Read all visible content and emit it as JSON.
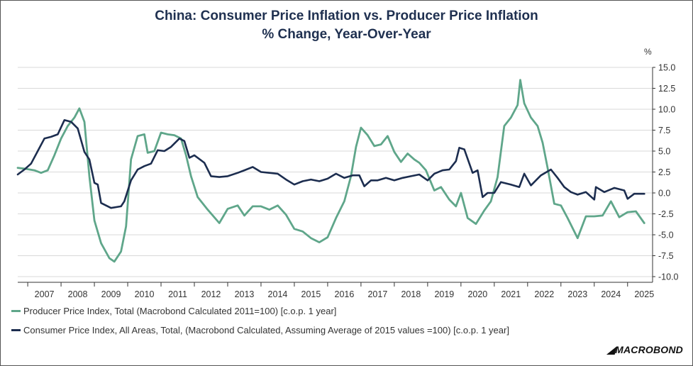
{
  "title_line1": "China: Consumer Price Inflation vs. Producer Price Inflation",
  "title_line2": "% Change, Year-Over-Year",
  "brand": "MACROBOND",
  "colors": {
    "ppi": "#5fa68a",
    "cpi": "#1c2d4f",
    "grid": "#d9d9d9",
    "axis": "#333333"
  },
  "chart_data": {
    "type": "line",
    "unit": "%",
    "ylim": [
      -10,
      15
    ],
    "yticks": [
      "15.0",
      "12.5",
      "10.0",
      "7.5",
      "5.0",
      "2.5",
      "0.0",
      "-2.5",
      "-5.0",
      "-7.5",
      "-10.0"
    ],
    "xlim": [
      2006.7,
      2025.75
    ],
    "xticks": [
      "2007",
      "2008",
      "2009",
      "2010",
      "2011",
      "2012",
      "2013",
      "2014",
      "2015",
      "2016",
      "2017",
      "2018",
      "2019",
      "2020",
      "2021",
      "2022",
      "2023",
      "2024",
      "2025"
    ],
    "grid": true,
    "legend_position": "bottom",
    "series": [
      {
        "name": "Producer Price Index, Total (Macrobond Calculated 2011=100) [c.o.p. 1 year]",
        "key": "ppi",
        "x": [
          2006.7,
          2006.9,
          2007.2,
          2007.4,
          2007.6,
          2007.8,
          2008.0,
          2008.2,
          2008.4,
          2008.55,
          2008.7,
          2008.85,
          2009.0,
          2009.2,
          2009.45,
          2009.6,
          2009.8,
          2009.95,
          2010.1,
          2010.3,
          2010.5,
          2010.6,
          2010.8,
          2011.0,
          2011.2,
          2011.4,
          2011.6,
          2011.75,
          2011.9,
          2012.1,
          2012.4,
          2012.75,
          2013.0,
          2013.3,
          2013.5,
          2013.75,
          2014.0,
          2014.25,
          2014.5,
          2014.75,
          2015.0,
          2015.25,
          2015.5,
          2015.75,
          2016.0,
          2016.25,
          2016.5,
          2016.7,
          2016.85,
          2017.0,
          2017.2,
          2017.4,
          2017.6,
          2017.8,
          2018.0,
          2018.2,
          2018.4,
          2018.6,
          2018.75,
          2018.95,
          2019.2,
          2019.4,
          2019.65,
          2019.85,
          2020.0,
          2020.2,
          2020.45,
          2020.7,
          2020.9,
          2021.1,
          2021.3,
          2021.5,
          2021.7,
          2021.78,
          2021.9,
          2022.1,
          2022.3,
          2022.45,
          2022.6,
          2022.8,
          2023.0,
          2023.2,
          2023.5,
          2023.75,
          2024.0,
          2024.25,
          2024.5,
          2024.75,
          2025.0,
          2025.25,
          2025.5
        ],
        "y": [
          3.0,
          2.9,
          2.7,
          2.4,
          2.7,
          4.5,
          6.5,
          8.0,
          9.0,
          10.1,
          8.5,
          2.0,
          -3.3,
          -6.0,
          -7.8,
          -8.2,
          -7.0,
          -4.0,
          4.0,
          6.8,
          7.0,
          4.8,
          5.0,
          7.2,
          7.0,
          6.9,
          6.5,
          4.5,
          2.0,
          -0.5,
          -2.0,
          -3.6,
          -1.9,
          -1.5,
          -2.7,
          -1.6,
          -1.6,
          -2.0,
          -1.5,
          -2.6,
          -4.3,
          -4.6,
          -5.4,
          -5.9,
          -5.3,
          -3.0,
          -1.0,
          2.0,
          5.5,
          7.8,
          6.9,
          5.6,
          5.8,
          6.8,
          4.9,
          3.7,
          4.7,
          4.0,
          3.6,
          2.7,
          0.3,
          0.7,
          -0.8,
          -1.6,
          0.0,
          -3.0,
          -3.7,
          -2.1,
          -1.0,
          1.9,
          8.0,
          9.0,
          10.5,
          13.5,
          10.7,
          9.0,
          8.0,
          6.0,
          3.0,
          -1.3,
          -1.5,
          -3.0,
          -5.4,
          -2.8,
          -2.8,
          -2.7,
          -1.0,
          -2.9,
          -2.3,
          -2.2,
          -3.6
        ]
      },
      {
        "name": "Consumer Price Index, All Areas, Total, (Macrobond Calculated, Assuming Average of 2015 values =100)     [c.o.p. 1 year]",
        "key": "cpi",
        "x": [
          2006.7,
          2006.9,
          2007.1,
          2007.3,
          2007.5,
          2007.7,
          2007.9,
          2008.1,
          2008.3,
          2008.5,
          2008.7,
          2008.85,
          2009.0,
          2009.1,
          2009.2,
          2009.5,
          2009.8,
          2009.9,
          2010.1,
          2010.3,
          2010.5,
          2010.7,
          2010.9,
          2011.1,
          2011.3,
          2011.55,
          2011.7,
          2011.85,
          2012.0,
          2012.3,
          2012.5,
          2012.75,
          2013.0,
          2013.3,
          2013.5,
          2013.75,
          2014.0,
          2014.25,
          2014.5,
          2014.75,
          2015.0,
          2015.25,
          2015.5,
          2015.75,
          2016.0,
          2016.25,
          2016.5,
          2016.75,
          2016.95,
          2017.1,
          2017.3,
          2017.5,
          2017.75,
          2018.0,
          2018.25,
          2018.5,
          2018.75,
          2019.0,
          2019.2,
          2019.45,
          2019.65,
          2019.85,
          2019.95,
          2020.1,
          2020.35,
          2020.5,
          2020.65,
          2020.8,
          2021.0,
          2021.2,
          2021.5,
          2021.75,
          2021.9,
          2022.1,
          2022.4,
          2022.7,
          2022.9,
          2023.1,
          2023.3,
          2023.5,
          2023.75,
          2024.0,
          2024.05,
          2024.3,
          2024.6,
          2024.9,
          2025.0,
          2025.2,
          2025.5
        ],
        "y": [
          2.2,
          2.8,
          3.5,
          5.0,
          6.5,
          6.7,
          7.0,
          8.7,
          8.5,
          7.7,
          4.9,
          4.0,
          1.2,
          1.0,
          -1.2,
          -1.8,
          -1.6,
          -1.0,
          1.5,
          2.8,
          3.2,
          3.5,
          5.1,
          5.0,
          5.5,
          6.5,
          6.2,
          4.2,
          4.5,
          3.6,
          2.0,
          1.9,
          2.0,
          2.4,
          2.7,
          3.1,
          2.5,
          2.4,
          2.3,
          1.6,
          1.0,
          1.4,
          1.6,
          1.4,
          1.7,
          2.3,
          1.8,
          2.1,
          2.1,
          0.8,
          1.5,
          1.5,
          1.8,
          1.5,
          1.8,
          2.0,
          2.2,
          1.5,
          2.3,
          2.7,
          2.8,
          3.8,
          5.4,
          5.2,
          2.4,
          2.7,
          -0.5,
          0.0,
          0.0,
          1.3,
          1.0,
          0.7,
          2.3,
          0.9,
          2.1,
          2.8,
          1.8,
          0.7,
          0.1,
          -0.2,
          0.1,
          -0.8,
          0.7,
          0.1,
          0.6,
          0.3,
          -0.7,
          -0.1,
          -0.1
        ]
      }
    ]
  }
}
